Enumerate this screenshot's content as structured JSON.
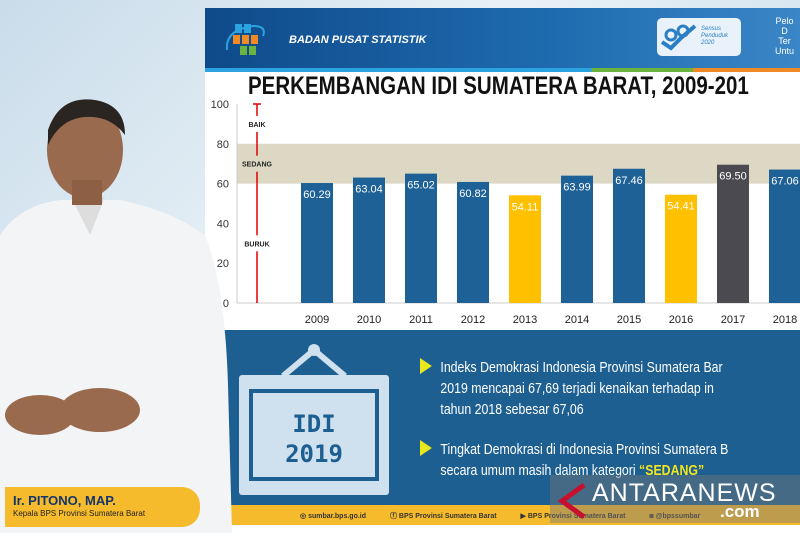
{
  "header": {
    "org": "BADAN PUSAT STATISTIK",
    "sensus": [
      "Sensus",
      "Penduduk",
      "2020"
    ],
    "right_text": [
      "Pelo",
      "D",
      "Ter",
      "Untu"
    ]
  },
  "colors": {
    "header": "#1a5fa3",
    "bar_default": "#1d6196",
    "bar_low": "#ffc000",
    "bar_highlight": "#4a4a50",
    "band": "#ddd8c4",
    "category_line": "#e00000",
    "footer": "#f6bb2c"
  },
  "chart_data": {
    "type": "bar",
    "title": "PERKEMBANGAN IDI SUMATERA BARAT, 2009-201",
    "categories": [
      "2009",
      "2010",
      "2011",
      "2012",
      "2013",
      "2014",
      "2015",
      "2016",
      "2017",
      "2018"
    ],
    "values": [
      60.29,
      63.04,
      65.02,
      60.82,
      54.11,
      63.99,
      67.46,
      54.41,
      69.5,
      67.06
    ],
    "value_labels": [
      "60.29",
      "63.04",
      "65.02",
      "60.82",
      "54.11",
      "63.99",
      "67.46",
      "54.41",
      "69.50",
      "67.06"
    ],
    "bar_colors": [
      "#1d6196",
      "#1d6196",
      "#1d6196",
      "#1d6196",
      "#ffc000",
      "#1d6196",
      "#1d6196",
      "#ffc000",
      "#4a4a50",
      "#1d6196"
    ],
    "ylim": [
      0,
      100
    ],
    "yticks": [
      "0",
      "20",
      "40",
      "60",
      "80",
      "100"
    ],
    "bands": [
      {
        "label": "BAIK",
        "from": 80,
        "to": 100
      },
      {
        "label": "SEDANG",
        "from": 60,
        "to": 80,
        "shaded": true
      },
      {
        "label": "BURUK",
        "from": 0,
        "to": 60
      }
    ]
  },
  "panel": {
    "badge_line1": "IDI",
    "badge_line2": "2019",
    "bullet1": [
      "Indeks Demokrasi Indonesia  Provinsi Sumatera Bar",
      "2019 mencapai 67,69 terjadi kenaikan terhadap in",
      "tahun 2018 sebesar 67,06"
    ],
    "bullet2": [
      "Tingkat Demokrasi di Indonesia Provinsi Sumatera B",
      "secara umum masih dalam kategori "
    ],
    "bullet2_highlight": "“SEDANG”"
  },
  "footer": {
    "web": "sumbar.bps.go.id",
    "facebook": "BPS Provinsi Sumatera Barat",
    "youtube": "BPS Provinsi Sumatera Barat",
    "instagram": "@bpssumbar"
  },
  "caption": {
    "name": "Ir. PITONO, MAP.",
    "role": "Kepala BPS Provinsi Sumatera Barat"
  },
  "watermark": {
    "text": "ANTARANEWS",
    "suffix": ".com"
  }
}
